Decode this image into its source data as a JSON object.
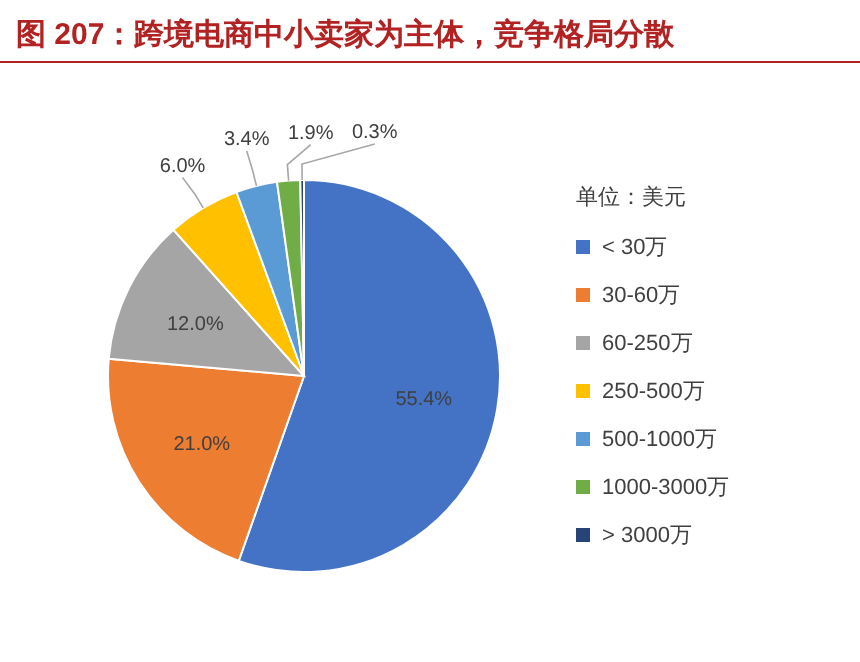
{
  "chart_data": {
    "type": "pie",
    "title": "图 207：跨境电商中小卖家为主体，竞争格局分散",
    "legend_title": "单位：美元",
    "categories": [
      "< 30万",
      "30-60万",
      "60-250万",
      "250-500万",
      "500-1000万",
      "1000-3000万",
      "> 3000万"
    ],
    "values": [
      55.4,
      21.0,
      12.0,
      6.0,
      3.4,
      1.9,
      0.3
    ],
    "colors": [
      "#4472c4",
      "#ed7d31",
      "#a5a5a5",
      "#ffc000",
      "#5b9bd5",
      "#70ad47",
      "#264478"
    ],
    "value_labels": [
      "55.4%",
      "21.0%",
      "12.0%",
      "6.0%",
      "3.4%",
      "1.9%",
      "0.3%"
    ],
    "legend": "right"
  }
}
